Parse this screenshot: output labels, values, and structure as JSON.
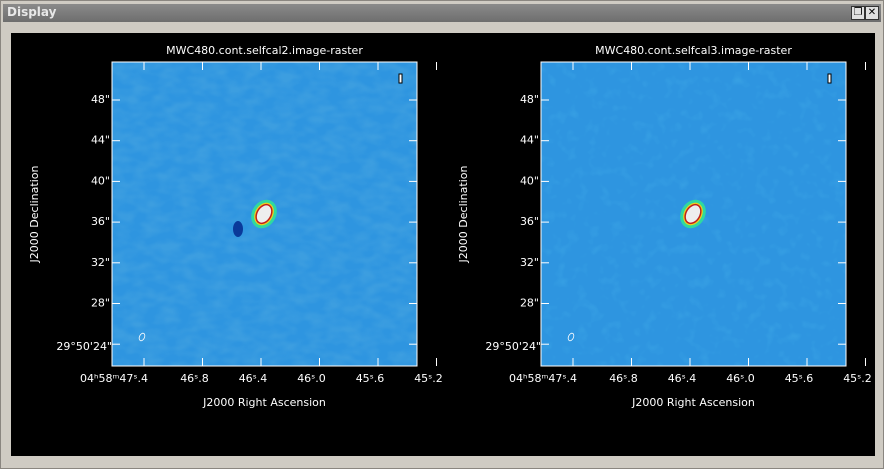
{
  "window": {
    "title": "Display"
  },
  "panels": [
    {
      "title": "MWC480.cont.selfcal2.image-raster",
      "x_label": "J2000 Right Ascension",
      "y_label": "J2000 Declination",
      "y_ticks": [
        "48\"",
        "44\"",
        "40\"",
        "36\"",
        "32\"",
        "28\"",
        "29°50'24\""
      ],
      "x_ticks": [
        "04ʰ58ᵐ47ˢ.4",
        "46ˢ.8",
        "46ˢ.4",
        "46ˢ.0",
        "45ˢ.6",
        "45ˢ.2"
      ]
    },
    {
      "title": "MWC480.cont.selfcal3.image-raster",
      "x_label": "J2000 Right Ascension",
      "y_label": "J2000 Declination",
      "y_ticks": [
        "48\"",
        "44\"",
        "40\"",
        "36\"",
        "32\"",
        "28\"",
        "29°50'24\""
      ],
      "x_ticks": [
        "04ʰ58ᵐ47ˢ.4",
        "46ˢ.8",
        "46ˢ.4",
        "46ˢ.0",
        "45ˢ.6",
        "45ˢ.2"
      ]
    }
  ]
}
